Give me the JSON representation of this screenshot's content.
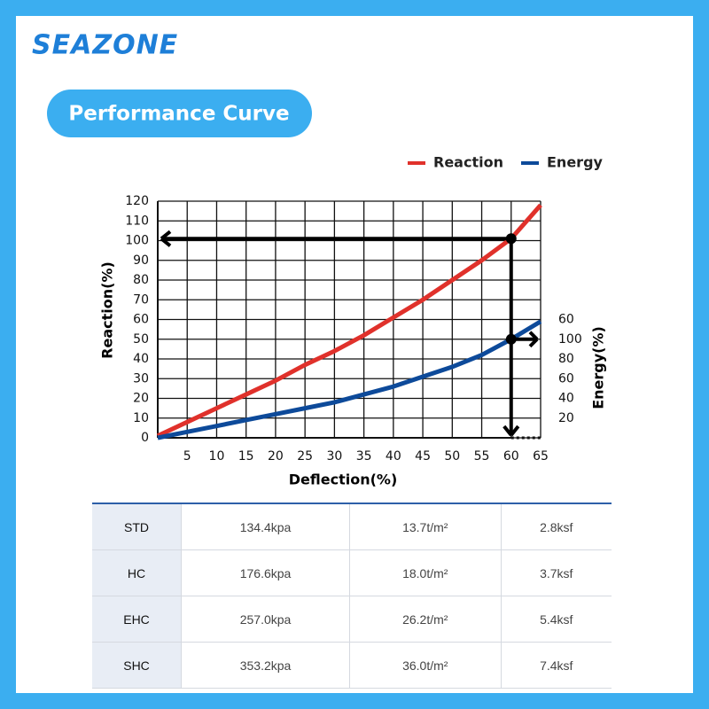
{
  "header": {
    "logo": "SEAZONE",
    "section_title": "Performance Curve"
  },
  "chart_data": {
    "type": "line",
    "x_label": "Deflection(%)",
    "y_label": "Reaction(%)",
    "y2_label": "Energy(%)",
    "x": [
      0,
      5,
      10,
      15,
      20,
      25,
      30,
      35,
      40,
      45,
      50,
      55,
      60,
      65
    ],
    "series": [
      {
        "name": "Reaction",
        "color": "#e0312b",
        "values": [
          1,
          8,
          15,
          22,
          29,
          37,
          44,
          52,
          61,
          70,
          80,
          90,
          101,
          118
        ]
      },
      {
        "name": "Energy",
        "color": "#0d4a9a",
        "axis": "y2",
        "values": [
          0,
          6,
          12,
          18,
          24,
          30,
          36,
          44,
          52,
          62,
          72,
          84,
          100,
          118
        ]
      }
    ],
    "xlim": [
      0,
      65
    ],
    "xticks": [
      5,
      10,
      15,
      20,
      25,
      30,
      35,
      40,
      45,
      50,
      55,
      60,
      65
    ],
    "ylim": [
      0,
      120
    ],
    "yticks": [
      0,
      10,
      20,
      30,
      40,
      50,
      60,
      70,
      80,
      90,
      100,
      110,
      120
    ],
    "y2lim": [
      0,
      240
    ],
    "y2ticks": [
      20,
      40,
      60,
      80,
      100
    ],
    "y2_top_label": "60",
    "grid": true,
    "legend": "top-right"
  },
  "table": {
    "rows": [
      [
        "STD",
        "134.4kpa",
        "13.7t/m²",
        "2.8ksf"
      ],
      [
        "HC",
        "176.6kpa",
        "18.0t/m²",
        "3.7ksf"
      ],
      [
        "EHC",
        "257.0kpa",
        "26.2t/m²",
        "5.4ksf"
      ],
      [
        "SHC",
        "353.2kpa",
        "36.0t/m²",
        "7.4ksf"
      ]
    ]
  }
}
